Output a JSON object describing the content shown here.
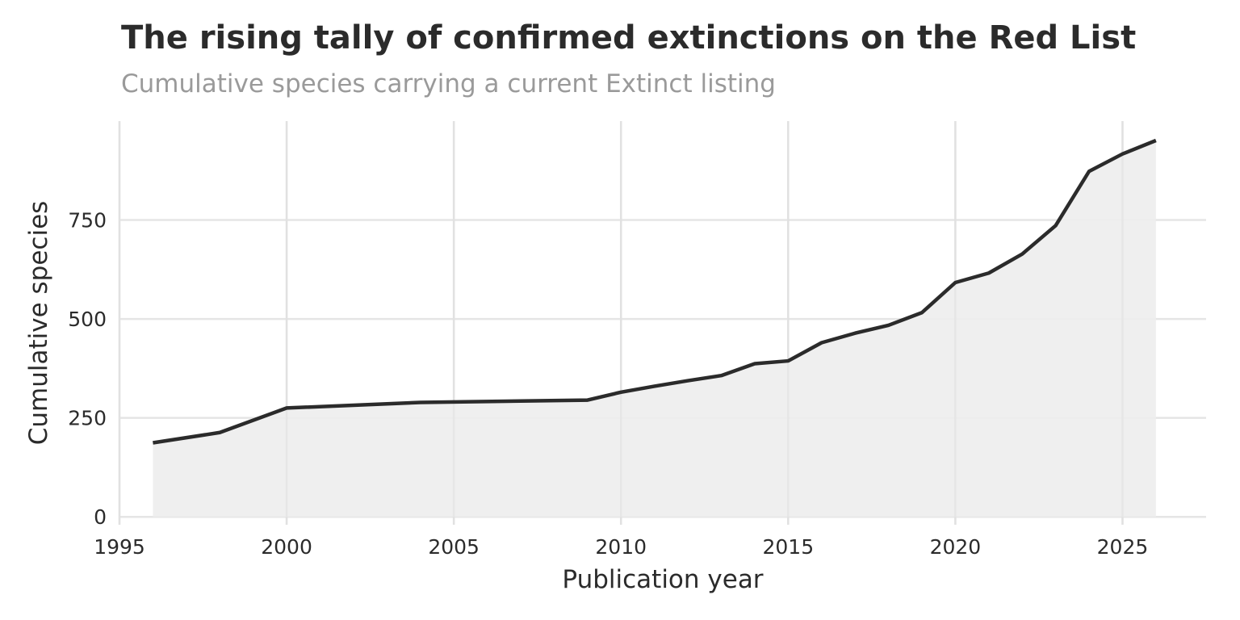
{
  "chart_data": {
    "type": "area",
    "title": "The rising tally of confirmed extinctions on the Red List",
    "subtitle": "Cumulative species carrying a current Extinct listing",
    "xlabel": "Publication year",
    "ylabel": "Cumulative species",
    "x": [
      1996,
      1998,
      2000,
      2004,
      2009,
      2010,
      2011,
      2012,
      2013,
      2014,
      2015,
      2016,
      2017,
      2018,
      2019,
      2020,
      2021,
      2022,
      2023,
      2024,
      2025,
      2026
    ],
    "series": [
      {
        "values": [
          187,
          213,
          275,
          289,
          295,
          315,
          330,
          344,
          357,
          387,
          394,
          440,
          464,
          484,
          516,
          592,
          616,
          664,
          736,
          873,
          917,
          951
        ]
      }
    ],
    "xlim": [
      1995,
      2027.5
    ],
    "ylim": [
      -20,
      1000
    ],
    "x_ticks": [
      "1995",
      "2000",
      "2005",
      "2010",
      "2015",
      "2020",
      "2025"
    ],
    "y_ticks": [
      "0",
      "250",
      "500",
      "750"
    ],
    "grid": true,
    "colors": {
      "line": "#2b2b2b",
      "fill": "#ededed",
      "grid": "#e5e5e5",
      "text": "#2b2b2b",
      "subtitle": "#9a9a9a"
    }
  }
}
